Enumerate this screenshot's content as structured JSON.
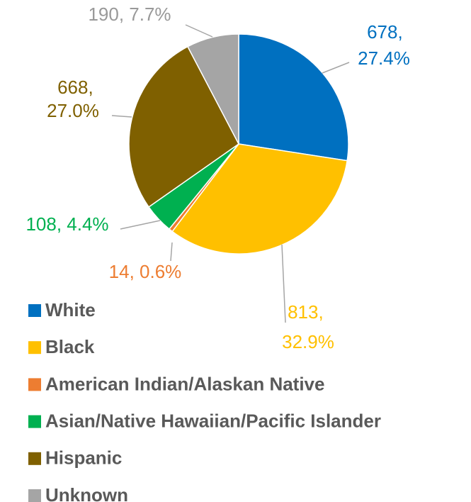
{
  "chart_data": {
    "type": "pie",
    "categories": [
      "White",
      "Black",
      "American Indian/Alaskan Native",
      "Asian/Native Hawaiian/Pacific Islander",
      "Hispanic",
      "Unknown"
    ],
    "values": [
      678,
      813,
      14,
      108,
      668,
      190
    ],
    "value_labels": [
      "678, 27.4%",
      "813, 32.9%",
      "14, 0.6%",
      "108, 4.4%",
      "668, 27.0%",
      "190, 7.7%"
    ],
    "colors": [
      "#0070C0",
      "#FFC000",
      "#ED7D31",
      "#00B050",
      "#7F6000",
      "#A5A5A5"
    ],
    "legend": "bottom"
  }
}
